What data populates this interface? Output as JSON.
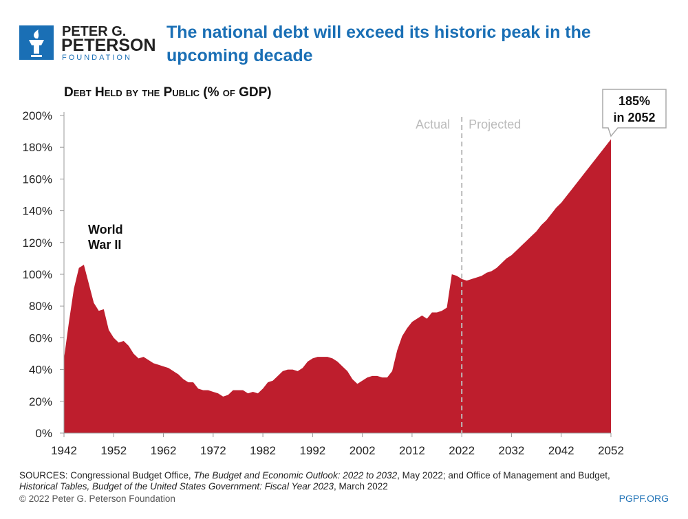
{
  "logo": {
    "line1": "PETER G.",
    "line2": "PETERSON",
    "line3": "FOUNDATION"
  },
  "chart_data": {
    "type": "area",
    "title": [
      "The national debt will exceed its historic peak in the",
      "upcoming decade"
    ],
    "subtitle": "Debt Held by the Public (% of GDP)",
    "color": "#be1e2d",
    "x": [
      1942,
      1943,
      1944,
      1945,
      1946,
      1947,
      1948,
      1949,
      1950,
      1951,
      1952,
      1953,
      1954,
      1955,
      1956,
      1957,
      1958,
      1959,
      1960,
      1961,
      1962,
      1963,
      1964,
      1965,
      1966,
      1967,
      1968,
      1969,
      1970,
      1971,
      1972,
      1973,
      1974,
      1975,
      1976,
      1977,
      1978,
      1979,
      1980,
      1981,
      1982,
      1983,
      1984,
      1985,
      1986,
      1987,
      1988,
      1989,
      1990,
      1991,
      1992,
      1993,
      1994,
      1995,
      1996,
      1997,
      1998,
      1999,
      2000,
      2001,
      2002,
      2003,
      2004,
      2005,
      2006,
      2007,
      2008,
      2009,
      2010,
      2011,
      2012,
      2013,
      2014,
      2015,
      2016,
      2017,
      2018,
      2019,
      2020,
      2021,
      2022,
      2023,
      2024,
      2025,
      2026,
      2027,
      2028,
      2029,
      2030,
      2031,
      2032,
      2033,
      2034,
      2035,
      2036,
      2037,
      2038,
      2039,
      2040,
      2041,
      2042,
      2043,
      2044,
      2045,
      2046,
      2047,
      2048,
      2049,
      2050,
      2051,
      2052
    ],
    "values": [
      47,
      70,
      91,
      104,
      106,
      94,
      82,
      77,
      78,
      65,
      60,
      57,
      58,
      55,
      50,
      47,
      48,
      46,
      44,
      43,
      42,
      41,
      39,
      37,
      34,
      32,
      32,
      28,
      27,
      27,
      26,
      25,
      23,
      24,
      27,
      27,
      27,
      25,
      26,
      25,
      28,
      32,
      33,
      36,
      39,
      40,
      40,
      39,
      41,
      45,
      47,
      48,
      48,
      48,
      47,
      45,
      42,
      39,
      34,
      31,
      33,
      35,
      36,
      36,
      35,
      35,
      39,
      52,
      61,
      66,
      70,
      72,
      74,
      72,
      76,
      76,
      77,
      79,
      100,
      99,
      97,
      96,
      97,
      98,
      99,
      101,
      102,
      104,
      107,
      110,
      112,
      115,
      118,
      121,
      124,
      127,
      131,
      134,
      138,
      142,
      145,
      149,
      153,
      157,
      161,
      165,
      169,
      173,
      177,
      181,
      185
    ],
    "xlim": [
      1942,
      2052
    ],
    "xticks": [
      1942,
      1952,
      1962,
      1972,
      1982,
      1992,
      2002,
      2012,
      2022,
      2032,
      2042,
      2052
    ],
    "ylim": [
      0,
      200
    ],
    "yticks": [
      {
        "value": 0,
        "label": "0%"
      },
      {
        "value": 20,
        "label": "20%"
      },
      {
        "value": 40,
        "label": "40%"
      },
      {
        "value": 60,
        "label": "60%"
      },
      {
        "value": 80,
        "label": "80%"
      },
      {
        "value": 100,
        "label": "100%"
      },
      {
        "value": 120,
        "label": "120%"
      },
      {
        "value": 140,
        "label": "140%"
      },
      {
        "value": 160,
        "label": "160%"
      },
      {
        "value": 180,
        "label": "180%"
      },
      {
        "value": 200,
        "label": "200%"
      }
    ],
    "divider_x": 2022,
    "divider_left": "Actual",
    "divider_right": "Projected",
    "annotation": [
      "World",
      "War II"
    ],
    "callout": [
      "185%",
      "in 2052"
    ]
  },
  "footer": {
    "sources": [
      [
        {
          "text": "SOURCES: Congressional Budget Office, ",
          "italic": false
        },
        {
          "text": "The Budget and Economic Outlook: 2022 to 2032",
          "italic": true
        },
        {
          "text": ", May 2022; and Office of Management and Budget,",
          "italic": false
        }
      ],
      [
        {
          "text": "Historical Tables, Budget of the United States Government: Fiscal Year 2023",
          "italic": true
        },
        {
          "text": ", March 2022",
          "italic": false
        }
      ]
    ],
    "copyright": "© 2022 Peter G. Peterson Foundation",
    "site": "PGPF.ORG"
  }
}
